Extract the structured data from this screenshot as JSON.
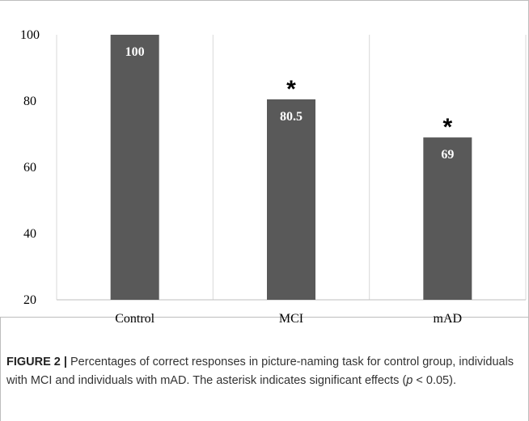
{
  "chart_data": {
    "type": "bar",
    "categories": [
      "Control",
      "MCI",
      "mAD"
    ],
    "values": [
      100,
      80.5,
      69
    ],
    "data_labels": [
      "100",
      "80.5",
      "69"
    ],
    "significance_marks": [
      "",
      "*",
      "*"
    ],
    "ylim": [
      20,
      100
    ],
    "yticks": [
      20,
      40,
      60,
      80,
      100
    ],
    "bar_color": "#595959",
    "grid": "vertical separators between categories",
    "title": "",
    "xlabel": "",
    "ylabel": ""
  },
  "caption": {
    "label": "FIGURE 2 |",
    "text": "Percentages of correct responses in picture-naming task for control group, individuals with MCI and individuals with mAD. The asterisk indicates significant effects (",
    "p_symbol": "p",
    "tail": " < 0.05)."
  }
}
